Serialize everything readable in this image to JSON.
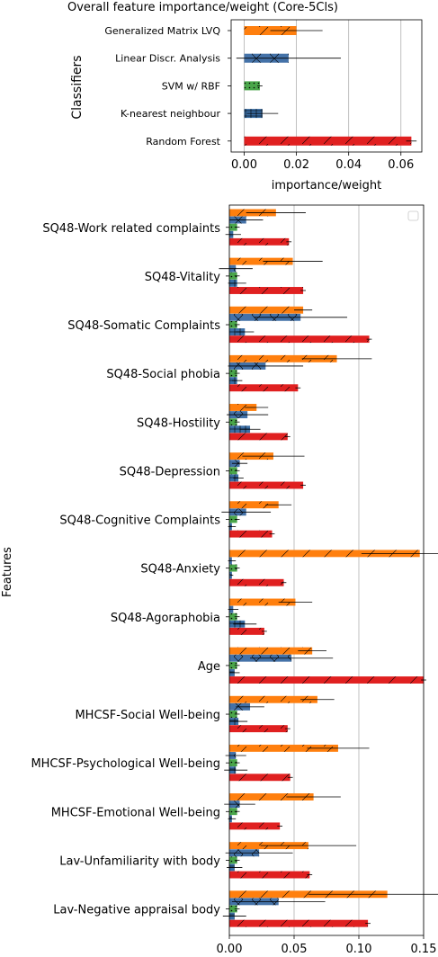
{
  "colors": {
    "gmlvq": "#ff7f0e",
    "lda": "#4472a8",
    "svm": "#4aa64a",
    "knn": "#3a6ea5",
    "rf": "#e02020",
    "grid": "#b0b0b0"
  },
  "chart_data": [
    {
      "type": "bar",
      "orientation": "horizontal",
      "title": "Overall feature importance/weight (Core-5Cls)",
      "xlabel": "importance/weight",
      "ylabel": "Classifiers",
      "xlim": [
        -0.005,
        0.068
      ],
      "xticks": [
        "0.00",
        "0.02",
        "0.04",
        "0.06"
      ],
      "xtick_values": [
        0,
        0.02,
        0.04,
        0.06
      ],
      "grid": "vertical",
      "categories": [
        "Generalized Matrix LVQ",
        "Linear Discr. Analysis",
        "SVM w/ RBF",
        "K-nearest neighbour",
        "Random Forest"
      ],
      "values": [
        0.02,
        0.017,
        0.006,
        0.007,
        0.064
      ],
      "errors": [
        0.01,
        0.02,
        0.001,
        0.006,
        0.002
      ],
      "bar_colors": [
        "gmlvq",
        "lda",
        "svm",
        "knn",
        "rf"
      ],
      "hatches": [
        "diag",
        "cross",
        "dot",
        "plus",
        "slash"
      ]
    },
    {
      "type": "bar",
      "orientation": "horizontal",
      "xlabel": "",
      "ylabel": "Features",
      "xlim": [
        0,
        0.15
      ],
      "xticks": [
        "0.00",
        "0.05",
        "0.10",
        "0.15"
      ],
      "xtick_values": [
        0,
        0.05,
        0.1,
        0.15
      ],
      "grid": "vertical",
      "legend": "top-right (empty box)",
      "categories": [
        "SQ48-Work related complaints",
        "SQ48-Vitality",
        "SQ48-Somatic Complaints",
        "SQ48-Social phobia",
        "SQ48-Hostility",
        "SQ48-Depression",
        "SQ48-Cognitive Complaints",
        "SQ48-Anxiety",
        "SQ48-Agoraphobia",
        "Age",
        "MHCSF-Social Well-being",
        "MHCSF-Psychological Well-being",
        "MHCSF-Emotional Well-being",
        "Lav-Unfamiliarity with body",
        "Lav-Negative appraisal body"
      ],
      "series": [
        {
          "color": "gmlvq",
          "hatch": "diag",
          "values": [
            0.036,
            0.049,
            0.057,
            0.083,
            0.021,
            0.034,
            0.038,
            0.147,
            0.051,
            0.064,
            0.068,
            0.084,
            0.065,
            0.061,
            0.122
          ],
          "errors": [
            0.023,
            0.023,
            0.007,
            0.027,
            0.009,
            0.024,
            0.01,
            0.045,
            0.013,
            0.011,
            0.013,
            0.024,
            0.021,
            0.037,
            0.061
          ]
        },
        {
          "color": "lda",
          "hatch": "cross",
          "values": [
            0.013,
            0.005,
            0.055,
            0.028,
            0.014,
            0.008,
            0.013,
            0.002,
            0.003,
            0.048,
            0.016,
            0.005,
            0.008,
            0.023,
            0.038
          ],
          "errors": [
            0.013,
            0.013,
            0.036,
            0.029,
            0.016,
            0.006,
            0.019,
            0.003,
            0.004,
            0.032,
            0.011,
            0.008,
            0.012,
            0.026,
            0.036
          ]
        },
        {
          "color": "svm",
          "hatch": "dot",
          "values": [
            0.006,
            0.006,
            0.006,
            0.006,
            0.006,
            0.006,
            0.006,
            0.006,
            0.006,
            0.006,
            0.006,
            0.006,
            0.006,
            0.006,
            0.006
          ],
          "errors": [
            0.002,
            0.002,
            0.002,
            0.002,
            0.002,
            0.002,
            0.002,
            0.002,
            0.002,
            0.002,
            0.002,
            0.002,
            0.002,
            0.002,
            0.002
          ]
        },
        {
          "color": "knn",
          "hatch": "plus",
          "values": [
            0.003,
            0.006,
            0.012,
            0.006,
            0.016,
            0.007,
            0.002,
            0.002,
            0.012,
            0.004,
            0.007,
            0.005,
            0.002,
            0.004,
            0.004
          ],
          "errors": [
            0.006,
            0.007,
            0.007,
            0.004,
            0.008,
            0.004,
            0.003,
            0.001,
            0.009,
            0.004,
            0.007,
            0.009,
            0.003,
            0.006,
            0.009
          ]
        },
        {
          "color": "rf",
          "hatch": "slash",
          "values": [
            0.046,
            0.057,
            0.108,
            0.053,
            0.045,
            0.057,
            0.033,
            0.042,
            0.027,
            0.15,
            0.045,
            0.047,
            0.039,
            0.062,
            0.107
          ],
          "errors": [
            0.002,
            0.002,
            0.002,
            0.002,
            0.002,
            0.002,
            0.002,
            0.002,
            0.002,
            0.002,
            0.002,
            0.002,
            0.002,
            0.002,
            0.002
          ]
        }
      ]
    }
  ]
}
